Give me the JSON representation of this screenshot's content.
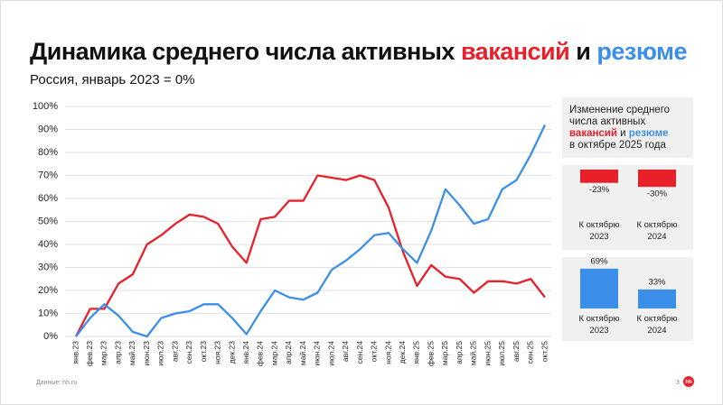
{
  "chart_data": [
    {
      "type": "line",
      "title_prefix": "Динамика среднего числа активных",
      "title_joiner": "и",
      "subtitle": "Россия, январь 2023 = 0%",
      "categories": [
        "янв.23",
        "фев.23",
        "мар.23",
        "апр.23",
        "май.23",
        "июн.23",
        "июл.23",
        "авг.23",
        "сен.23",
        "окт.23",
        "ноя.23",
        "дек.23",
        "янв.24",
        "фев.24",
        "мар.24",
        "апр.24",
        "май.24",
        "июн.24",
        "июл.24",
        "авг.24",
        "сен.24",
        "окт.24",
        "ноя.24",
        "дек.24",
        "янв.25",
        "фев.25",
        "мар.25",
        "апр.25",
        "май.25",
        "июн.25",
        "июл.25",
        "авг.25",
        "сен.25",
        "окт.25"
      ],
      "series": [
        {
          "name": "вакансий",
          "color": "#e8202a",
          "values": [
            0,
            12,
            12,
            23,
            27,
            40,
            44,
            49,
            53,
            52,
            49,
            39,
            32,
            51,
            52,
            59,
            59,
            70,
            69,
            68,
            70,
            68,
            56,
            37,
            22,
            31,
            26,
            25,
            19,
            24,
            24,
            23,
            25,
            17
          ]
        },
        {
          "name": "резюме",
          "color": "#3b8fe8",
          "values": [
            0,
            8,
            14,
            9,
            2,
            0,
            8,
            10,
            11,
            14,
            14,
            8,
            1,
            11,
            20,
            17,
            16,
            19,
            29,
            33,
            38,
            44,
            45,
            38,
            32,
            46,
            64,
            57,
            49,
            51,
            64,
            68,
            79,
            92
          ]
        }
      ],
      "ylim": [
        0,
        100
      ],
      "yticks": [
        {
          "value": 0,
          "label": "0%"
        },
        {
          "value": 10,
          "label": "10%"
        },
        {
          "value": 20,
          "label": "20%"
        },
        {
          "value": 30,
          "label": "30%"
        },
        {
          "value": 40,
          "label": "40%"
        },
        {
          "value": 50,
          "label": "50%"
        },
        {
          "value": 60,
          "label": "60%"
        },
        {
          "value": 70,
          "label": "70%"
        },
        {
          "value": 80,
          "label": "80%"
        },
        {
          "value": 90,
          "label": "90%"
        },
        {
          "value": 100,
          "label": "100%"
        }
      ],
      "grid": true
    },
    {
      "type": "bar",
      "title_prefix": "Изменение среднего числа активных",
      "title_joiner": "и",
      "title_suffix": "в октябре 2025 года",
      "categories": [
        "К октябрю 2023",
        "К октябрю 2024"
      ],
      "series": [
        {
          "name": "вакансий",
          "color": "#e8202a",
          "values": [
            -23,
            -30
          ],
          "value_labels": [
            "-23%",
            "-30%"
          ]
        },
        {
          "name": "резюме",
          "color": "#3b8fe8",
          "values": [
            69,
            33
          ],
          "value_labels": [
            "69%",
            "33%"
          ]
        }
      ]
    }
  ],
  "footer": {
    "source": "Данные: hh.ru",
    "page": "3",
    "logo": "hh"
  }
}
